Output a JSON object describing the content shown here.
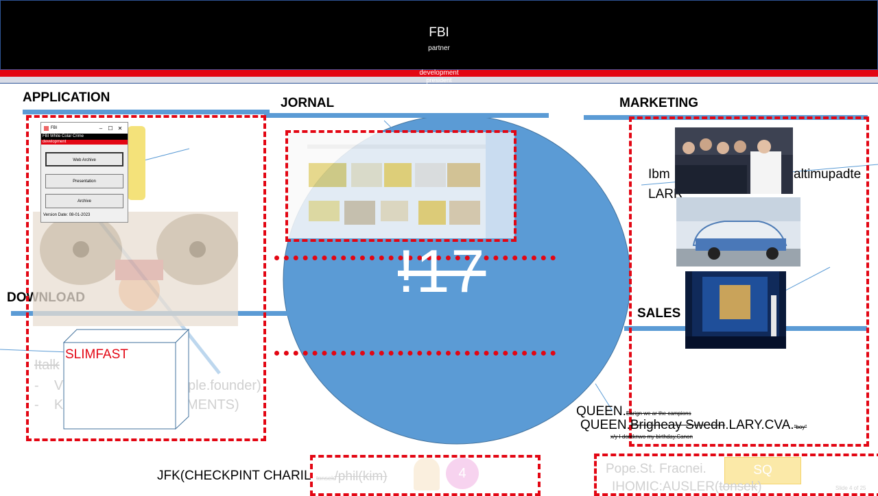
{
  "header": {
    "title": "FBI",
    "subtitle": "partner",
    "bar_label": "development",
    "bar2_label": "president"
  },
  "sections": {
    "application": "APPLICATION",
    "jornal": "JORNAL",
    "marketing": "MARKETING",
    "download": "DOWNLOAD",
    "sales": "SALES"
  },
  "window": {
    "title": "FBI",
    "header": "FBI White Colar Crime",
    "band": "development",
    "buttons": [
      "Web Archive",
      "Presentation",
      "Archive"
    ],
    "version": "Version Date: 08-01-2023",
    "controls": [
      "–",
      "☐",
      "✕"
    ]
  },
  "center": {
    "big_text": "!17"
  },
  "slimfast": "SLIMFAST",
  "faded_list": {
    "heading": "Italk",
    "items": [
      "V",
      "K"
    ],
    "item_tails": [
      "ple.founder)",
      "MENTS)"
    ]
  },
  "marketing_text": {
    "line1_left": "Ibm",
    "line1_right": "altimupadte",
    "line2": "LARR"
  },
  "queen": {
    "line1": "QUEEN.",
    "line1_small": "Earign we ar the campions",
    "line2_prefix": "QUEEN.",
    "line2_strike": "Brigheay Swedn",
    "line2_suffix": ".LARY.CVA.",
    "line2_small": "\"boy\"",
    "line3": "x/y I dontknwo my birthday.Canon"
  },
  "jfk": {
    "label": "JFK(CHECKPINT CHARIL",
    "small": "tonsek",
    "strike": "/phil(kim)",
    "badge": "4"
  },
  "pope": {
    "line1": "Pope.St. Fracnei.",
    "line2_prefix": "IHOMIC:AUSLER(",
    "line2_strike": "tonsek",
    "line2_suffix": ")",
    "box": "SQ",
    "corner": "Slide 4 of 25"
  },
  "colors": {
    "accent_blue": "#5b9bd5",
    "alert_red": "#e30613"
  }
}
